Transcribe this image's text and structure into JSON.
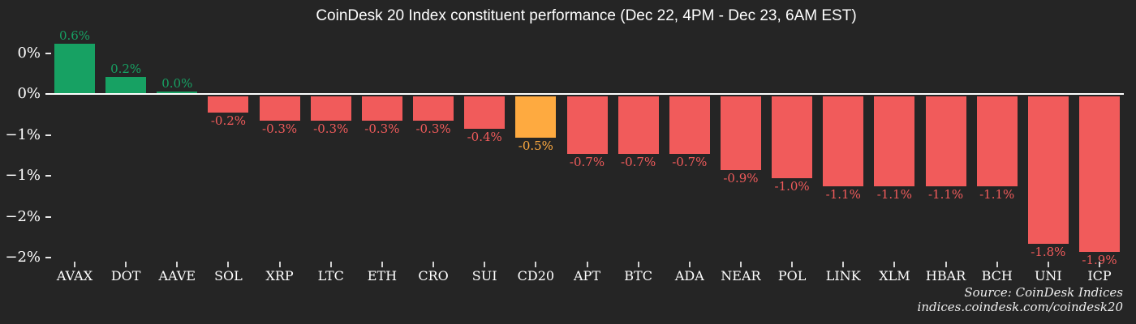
{
  "title": "CoinDesk 20 Index constituent performance (Dec 22, 4PM - Dec 23, 6AM EST)",
  "source": {
    "line1": "Source: CoinDesk Indices",
    "line2": "indices.coindesk.com/coindesk20"
  },
  "colors": {
    "background": "#252525",
    "positive": "#17a163",
    "negative": "#f15b5b",
    "highlight": "#feaa40",
    "axis": "#ffffff"
  },
  "chart_data": {
    "type": "bar",
    "title": "CoinDesk 20 Index constituent performance (Dec 22, 4PM - Dec 23, 6AM EST)",
    "xlabel": "",
    "ylabel": "",
    "unit": "%",
    "grid": false,
    "legend": false,
    "ylim": [
      -2.1,
      0.75
    ],
    "categories": [
      "AVAX",
      "DOT",
      "AAVE",
      "SOL",
      "XRP",
      "LTC",
      "ETH",
      "CRO",
      "SUI",
      "CD20",
      "APT",
      "BTC",
      "ADA",
      "NEAR",
      "POL",
      "LINK",
      "XLM",
      "HBAR",
      "BCH",
      "UNI",
      "ICP"
    ],
    "values": [
      0.6,
      0.2,
      0.0,
      -0.2,
      -0.3,
      -0.3,
      -0.3,
      -0.3,
      -0.4,
      -0.5,
      -0.7,
      -0.7,
      -0.7,
      -0.9,
      -1.0,
      -1.1,
      -1.1,
      -1.1,
      -1.1,
      -1.8,
      -1.9
    ],
    "labels": [
      "0.6%",
      "0.2%",
      "0.0%",
      "-0.2%",
      "-0.3%",
      "-0.3%",
      "-0.3%",
      "-0.3%",
      "-0.4%",
      "-0.5%",
      "-0.7%",
      "-0.7%",
      "-0.7%",
      "-0.9%",
      "-1.0%",
      "-1.1%",
      "-1.1%",
      "-1.1%",
      "-1.1%",
      "-1.8%",
      "-1.9%"
    ],
    "highlight_category": "CD20",
    "y_ticks": [
      {
        "value": 0.5,
        "label": "0%"
      },
      {
        "value": 0,
        "label": "0%"
      },
      {
        "value": -0.5,
        "label": "−1%"
      },
      {
        "value": -1,
        "label": "−1%"
      },
      {
        "value": -1.5,
        "label": "−2%"
      },
      {
        "value": -2,
        "label": "−2%"
      }
    ]
  }
}
